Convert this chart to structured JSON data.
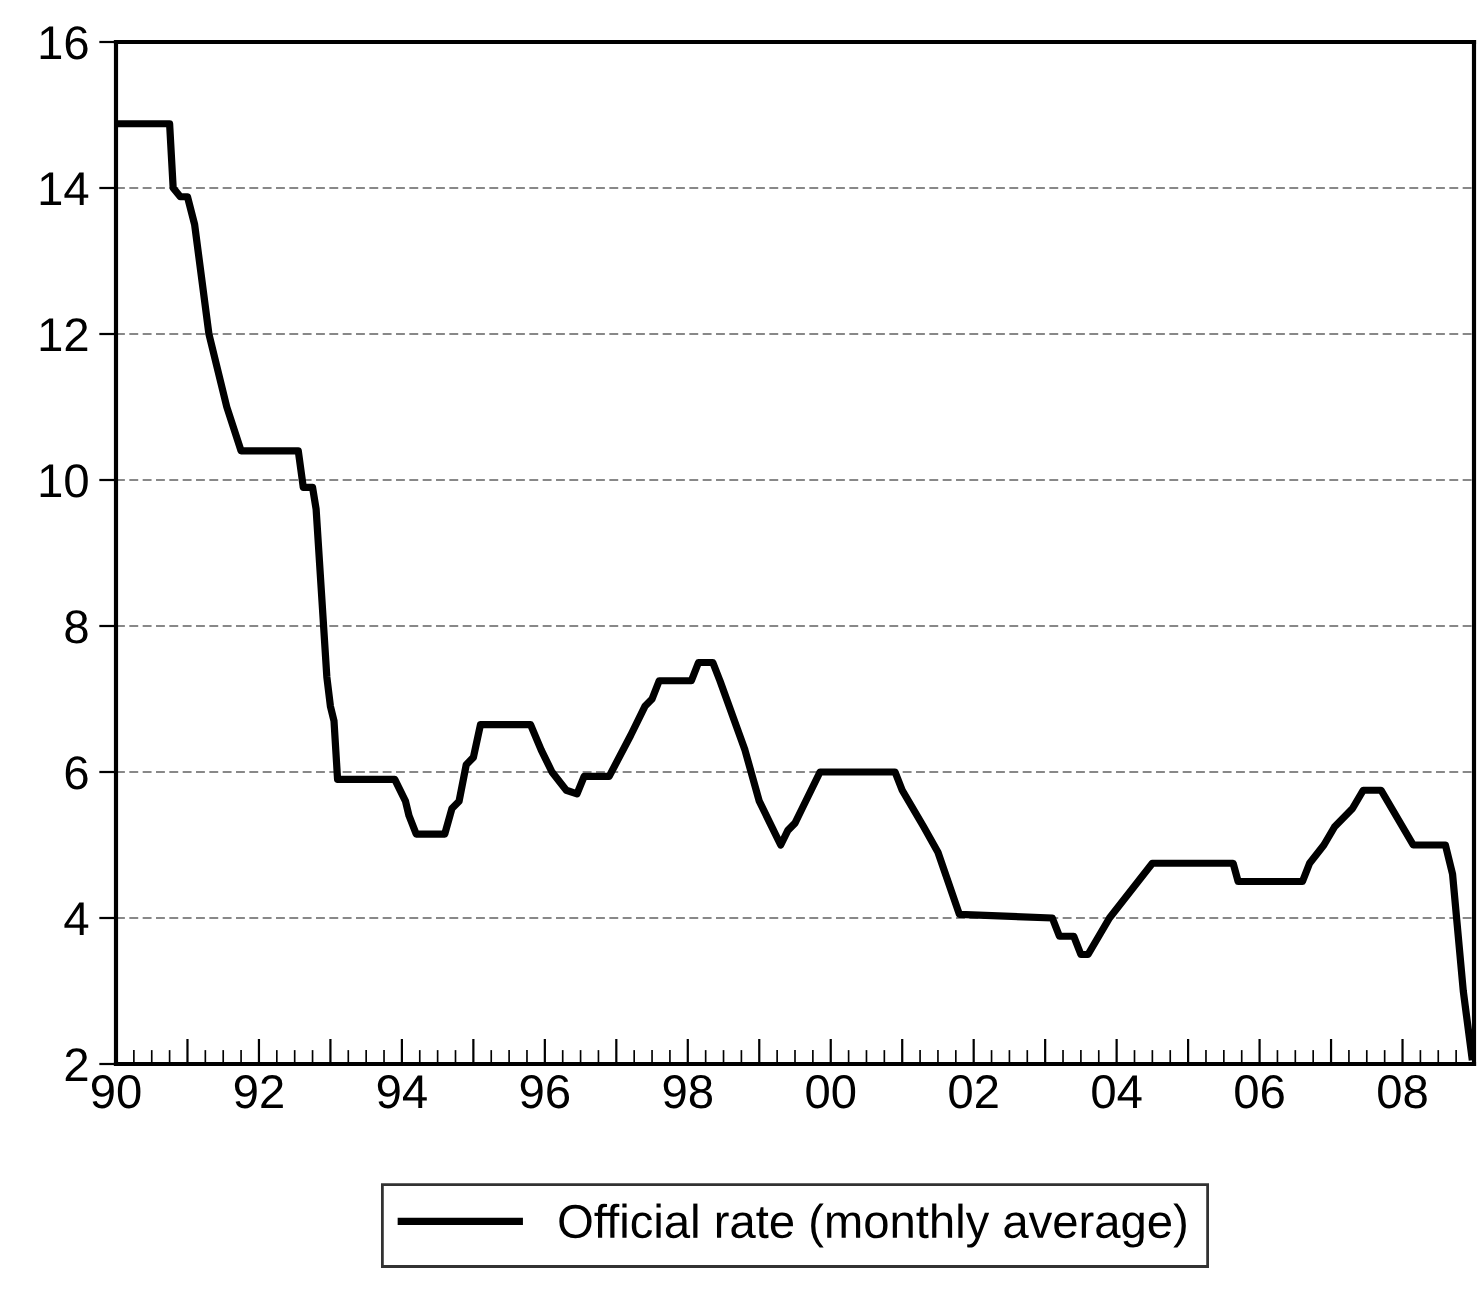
{
  "chart_data": {
    "type": "line",
    "series": [
      {
        "name": "Official rate (monthly average)",
        "color": "#000000",
        "x": [
          1990.0,
          1990.75,
          1990.8,
          1990.9,
          1991.0,
          1991.1,
          1991.3,
          1991.55,
          1991.75,
          1992.55,
          1992.62,
          1992.75,
          1992.8,
          1992.95,
          1993.0,
          1993.05,
          1993.1,
          1993.9,
          1994.05,
          1994.1,
          1994.2,
          1994.6,
          1994.7,
          1994.8,
          1994.9,
          1995.0,
          1995.1,
          1995.8,
          1995.95,
          1996.1,
          1996.3,
          1996.45,
          1996.55,
          1996.9,
          1997.2,
          1997.4,
          1997.5,
          1997.6,
          1998.05,
          1998.15,
          1998.35,
          1998.45,
          1998.8,
          1999.0,
          1999.15,
          1999.3,
          1999.4,
          1999.5,
          1999.6,
          1999.85,
          2000.9,
          2001.0,
          2001.3,
          2001.5,
          2001.8,
          2003.1,
          2003.2,
          2003.4,
          2003.5,
          2003.6,
          2003.75,
          2003.9,
          2004.3,
          2004.5,
          2005.63,
          2005.7,
          2006.6,
          2006.7,
          2006.9,
          2007.05,
          2007.3,
          2007.45,
          2007.7,
          2007.85,
          2008.0,
          2008.15,
          2008.6,
          2008.7,
          2008.85,
          2008.97
        ],
        "values": [
          14.88,
          14.88,
          14.0,
          13.88,
          13.88,
          13.5,
          12.0,
          11.0,
          10.4,
          10.4,
          9.9,
          9.9,
          9.6,
          7.3,
          6.9,
          6.7,
          5.9,
          5.9,
          5.6,
          5.4,
          5.15,
          5.15,
          5.5,
          5.6,
          6.1,
          6.2,
          6.65,
          6.65,
          6.3,
          6.0,
          5.75,
          5.7,
          5.94,
          5.94,
          6.5,
          6.9,
          7.0,
          7.25,
          7.25,
          7.5,
          7.5,
          7.25,
          6.3,
          5.6,
          5.3,
          5.0,
          5.2,
          5.3,
          5.5,
          6.0,
          6.0,
          5.75,
          5.25,
          4.9,
          4.05,
          4.0,
          3.75,
          3.75,
          3.5,
          3.5,
          3.75,
          4.0,
          4.5,
          4.75,
          4.75,
          4.5,
          4.5,
          4.75,
          5.0,
          5.25,
          5.5,
          5.75,
          5.75,
          5.5,
          5.25,
          5.0,
          5.0,
          4.6,
          3.0,
          2.1
        ]
      }
    ],
    "xlim": [
      1990,
      2009
    ],
    "xticks": [
      {
        "value": 1990,
        "label": "90"
      },
      {
        "value": 1991,
        "label": null
      },
      {
        "value": 1992,
        "label": "92"
      },
      {
        "value": 1993,
        "label": null
      },
      {
        "value": 1994,
        "label": "94"
      },
      {
        "value": 1995,
        "label": null
      },
      {
        "value": 1996,
        "label": "96"
      },
      {
        "value": 1997,
        "label": null
      },
      {
        "value": 1998,
        "label": "98"
      },
      {
        "value": 1999,
        "label": null
      },
      {
        "value": 2000,
        "label": "00"
      },
      {
        "value": 2001,
        "label": null
      },
      {
        "value": 2002,
        "label": "02"
      },
      {
        "value": 2003,
        "label": null
      },
      {
        "value": 2004,
        "label": "04"
      },
      {
        "value": 2005,
        "label": null
      },
      {
        "value": 2006,
        "label": "06"
      },
      {
        "value": 2007,
        "label": null
      },
      {
        "value": 2008,
        "label": "08"
      }
    ],
    "ylim": [
      2,
      16
    ],
    "yticks": [
      2,
      4,
      6,
      8,
      10,
      12,
      14,
      16
    ],
    "grid": "y",
    "legend": "bottom",
    "line_style": "solid",
    "marker": "none"
  }
}
